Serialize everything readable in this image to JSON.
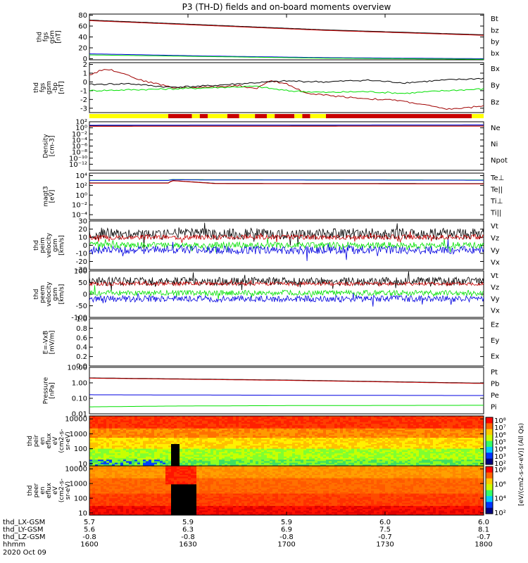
{
  "title": "P3 (TH-D) fields and on-board moments overview",
  "colors": {
    "black": "#000000",
    "red": "#c80000",
    "darkred": "#a00000",
    "green": "#00e000",
    "blue": "#0000e0",
    "yellow": "#ffff00"
  },
  "chart_data": [
    {
      "type": "line",
      "id": "fgs_mag",
      "ylabel": [
        "thd",
        "fgs",
        "gsm",
        "[nT]"
      ],
      "ylim": [
        -2,
        82
      ],
      "yticks": [
        "0",
        "20",
        "40",
        "60",
        "80"
      ],
      "legend": [
        {
          "name": "Bt",
          "color": "#000000"
        },
        {
          "name": "bz",
          "color": "#c80000"
        },
        {
          "name": "by",
          "color": "#00e000"
        },
        {
          "name": "bx",
          "color": "#0000e0"
        }
      ],
      "series": [
        {
          "name": "Bt",
          "color": "#000000",
          "x": [
            0,
            0.3,
            0.6,
            1.0
          ],
          "y": [
            71,
            62,
            53,
            44
          ]
        },
        {
          "name": "bz",
          "color": "#c80000",
          "x": [
            0,
            0.3,
            0.6,
            1.0
          ],
          "y": [
            70,
            61,
            52,
            43
          ]
        },
        {
          "name": "bx",
          "color": "#0000e0",
          "x": [
            0,
            0.3,
            0.6,
            1.0
          ],
          "y": [
            9,
            5,
            2,
            0
          ]
        },
        {
          "name": "by",
          "color": "#00e000",
          "x": [
            0,
            0.3,
            0.6,
            1.0
          ],
          "y": [
            7,
            4,
            1,
            -1
          ]
        }
      ]
    },
    {
      "type": "line",
      "id": "fgs_dsl",
      "ylabel": [
        "thd",
        "fgs",
        "gsm",
        "-bp",
        "[nT]"
      ],
      "ylim": [
        -3.5,
        2.2
      ],
      "yticks": [
        "-3",
        "-2",
        "-1",
        "0",
        "1",
        "2"
      ],
      "legend": [
        {
          "name": "Bx",
          "color": "#000000"
        },
        {
          "name": "By",
          "color": "#00e000"
        },
        {
          "name": "Bz",
          "color": "#c80000"
        }
      ],
      "series": [
        {
          "name": "Bz",
          "color": "#a00000",
          "x": [
            0,
            0.04,
            0.08,
            0.13,
            0.18,
            0.22,
            0.3,
            0.38,
            0.42,
            0.46,
            0.5,
            0.55,
            0.62,
            0.7,
            0.78,
            0.85,
            0.9,
            0.95,
            1.0
          ],
          "y": [
            0.8,
            1.5,
            1.1,
            0.2,
            -0.3,
            -0.7,
            -0.6,
            -0.4,
            -0.8,
            0.1,
            -0.2,
            -1.3,
            -1.6,
            -1.9,
            -2.1,
            -2.6,
            -3.1,
            -3.0,
            -2.7
          ]
        },
        {
          "name": "Bx",
          "color": "#000000",
          "x": [
            0,
            0.1,
            0.2,
            0.28,
            0.35,
            0.42,
            0.5,
            0.6,
            0.7,
            0.8,
            0.9,
            1.0
          ],
          "y": [
            -0.3,
            -0.2,
            -0.6,
            -0.5,
            -0.3,
            -0.1,
            0.1,
            0.0,
            0.2,
            -0.1,
            0.2,
            0.4
          ]
        },
        {
          "name": "By",
          "color": "#00e000",
          "x": [
            0,
            0.1,
            0.2,
            0.28,
            0.35,
            0.42,
            0.5,
            0.6,
            0.7,
            0.8,
            0.9,
            1.0
          ],
          "y": [
            -1.0,
            -0.9,
            -0.8,
            -0.7,
            -0.6,
            -0.5,
            -1.0,
            -1.2,
            -1.1,
            -1.3,
            -1.0,
            -0.8
          ]
        }
      ],
      "mode_bar": [
        {
          "from": 0.0,
          "to": 0.2,
          "color": "#ffff00"
        },
        {
          "from": 0.2,
          "to": 0.26,
          "color": "#c80000"
        },
        {
          "from": 0.26,
          "to": 0.28,
          "color": "#ffff00"
        },
        {
          "from": 0.28,
          "to": 0.3,
          "color": "#c80000"
        },
        {
          "from": 0.3,
          "to": 0.35,
          "color": "#ffff00"
        },
        {
          "from": 0.35,
          "to": 0.38,
          "color": "#c80000"
        },
        {
          "from": 0.38,
          "to": 0.42,
          "color": "#ffff00"
        },
        {
          "from": 0.42,
          "to": 0.45,
          "color": "#c80000"
        },
        {
          "from": 0.45,
          "to": 0.47,
          "color": "#ffff00"
        },
        {
          "from": 0.47,
          "to": 0.52,
          "color": "#c80000"
        },
        {
          "from": 0.52,
          "to": 0.54,
          "color": "#ffff00"
        },
        {
          "from": 0.54,
          "to": 0.56,
          "color": "#c80000"
        },
        {
          "from": 0.56,
          "to": 0.6,
          "color": "#ffff00"
        },
        {
          "from": 0.6,
          "to": 0.97,
          "color": "#c80000"
        },
        {
          "from": 0.97,
          "to": 1.0,
          "color": "#ffff00"
        }
      ]
    },
    {
      "type": "line",
      "id": "density",
      "ylabel": [
        "Density",
        "[cm-3]"
      ],
      "yscale": "log",
      "ylim": [
        -14,
        2
      ],
      "yticks": [
        "10²",
        "10⁰",
        "10⁻²",
        "10⁻⁴",
        "10⁻⁶",
        "10⁻⁸",
        "10⁻¹⁰",
        "10⁻¹²"
      ],
      "legend": [
        {
          "name": "Ne",
          "color": "#c80000"
        },
        {
          "name": "Ni",
          "color": "#000000"
        },
        {
          "name": "Npot",
          "color": "#0000e0"
        }
      ],
      "series": [
        {
          "name": "Npot",
          "color": "#0000e0",
          "x": [
            0,
            0.5,
            1.0
          ],
          "y": [
            0.85,
            0.9,
            0.95
          ]
        },
        {
          "name": "Ni",
          "color": "#000000",
          "x": [
            0,
            0.5,
            1.0
          ],
          "y": [
            0.6,
            0.62,
            0.64
          ]
        },
        {
          "name": "Ne",
          "color": "#c80000",
          "x": [
            0,
            0.5,
            1.0
          ],
          "y": [
            0.5,
            0.52,
            0.55
          ]
        }
      ]
    },
    {
      "type": "line",
      "id": "temperature",
      "ylabel": [
        "magt3",
        "[eV]"
      ],
      "yscale": "log",
      "ylim": [
        -5,
        4.5
      ],
      "yticks": [
        "10⁴",
        "10²",
        "10⁰",
        "10⁻²",
        "10⁻⁴"
      ],
      "legend": [
        {
          "name": "Te⊥",
          "color": "#c80000"
        },
        {
          "name": "Te||",
          "color": "#000000"
        },
        {
          "name": "Ti⊥",
          "color": "#0000e0"
        },
        {
          "name": "Ti||",
          "color": "#00e000"
        }
      ],
      "series": [
        {
          "name": "Ti||",
          "color": "#00e000",
          "x": [
            0,
            0.2,
            0.21,
            0.3,
            1.0
          ],
          "y": [
            3.05,
            3.05,
            3.2,
            3.15,
            3.1
          ]
        },
        {
          "name": "Ti⊥",
          "color": "#0000e0",
          "x": [
            0,
            0.2,
            0.21,
            0.3,
            1.0
          ],
          "y": [
            3.0,
            3.0,
            3.15,
            3.1,
            3.05
          ]
        },
        {
          "name": "Te||",
          "color": "#000000",
          "x": [
            0,
            0.2,
            0.21,
            0.32,
            1.0
          ],
          "y": [
            2.5,
            2.5,
            3.0,
            2.4,
            2.35
          ]
        },
        {
          "name": "Te⊥",
          "color": "#c80000",
          "x": [
            0,
            0.2,
            0.21,
            0.32,
            1.0
          ],
          "y": [
            2.45,
            2.45,
            2.95,
            2.35,
            2.3
          ]
        }
      ]
    },
    {
      "type": "line",
      "id": "peim_velocity",
      "ylabel": [
        "thd",
        "peim",
        "velocity",
        "gsm",
        "[km/s]"
      ],
      "ylim": [
        -30,
        30
      ],
      "yticks": [
        "30",
        "20",
        "10",
        "0",
        "-10",
        "-20",
        "-30"
      ],
      "legend": [
        {
          "name": "Vt",
          "color": "#000000"
        },
        {
          "name": "Vz",
          "color": "#c80000"
        },
        {
          "name": "Vy",
          "color": "#00e000"
        },
        {
          "name": "Vx",
          "color": "#0000e0"
        }
      ],
      "series": [
        {
          "name": "Vt",
          "color": "#000000",
          "mean": 14,
          "spread": 7
        },
        {
          "name": "Vz",
          "color": "#c80000",
          "mean": 10,
          "spread": 3
        },
        {
          "name": "Vy",
          "color": "#00e000",
          "mean": 0,
          "spread": 4
        },
        {
          "name": "Vx",
          "color": "#0000e0",
          "mean": -6,
          "spread": 5
        }
      ],
      "gap": [
        0.2,
        0.21
      ]
    },
    {
      "type": "line",
      "id": "peem_velocity",
      "ylabel": [
        "thd",
        "peem",
        "velocity",
        "gsm",
        "[km/s]"
      ],
      "ylim": [
        -100,
        100
      ],
      "yticks": [
        "100",
        "50",
        "0",
        "-50",
        "-100"
      ],
      "legend": [
        {
          "name": "Vt",
          "color": "#000000"
        },
        {
          "name": "Vz",
          "color": "#c80000"
        },
        {
          "name": "Vy",
          "color": "#00e000"
        },
        {
          "name": "Vx",
          "color": "#0000e0"
        }
      ],
      "series": [
        {
          "name": "Vt",
          "color": "#000000",
          "mean": 55,
          "spread": 18
        },
        {
          "name": "Vz",
          "color": "#c80000",
          "mean": 45,
          "spread": 8
        },
        {
          "name": "Vy",
          "color": "#00e000",
          "mean": 5,
          "spread": 12
        },
        {
          "name": "Vx",
          "color": "#0000e0",
          "mean": -20,
          "spread": 14
        }
      ],
      "gap": [
        0.2,
        0.21
      ]
    },
    {
      "type": "line",
      "id": "efield",
      "ylabel": [
        "E=-VxB",
        "[mV/m]"
      ],
      "ylim": [
        0,
        1
      ],
      "yticks": [
        "1.0",
        "0.8",
        "0.6",
        "0.4",
        "0.2",
        "0.0"
      ],
      "legend": [
        {
          "name": "Ez",
          "color": "#c80000"
        },
        {
          "name": "Ey",
          "color": "#00e000"
        },
        {
          "name": "Ex",
          "color": "#0000e0"
        }
      ],
      "series": []
    },
    {
      "type": "line",
      "id": "pressure",
      "ylabel": [
        "Pressure",
        "[nPa]"
      ],
      "yscale": "log",
      "ylim": [
        -2,
        1
      ],
      "yticks": [
        "10.00",
        "1.00",
        "0.10",
        "0.01"
      ],
      "legend": [
        {
          "name": "Pt",
          "color": "#000000"
        },
        {
          "name": "Pb",
          "color": "#c80000"
        },
        {
          "name": "Pe",
          "color": "#0000e0"
        },
        {
          "name": "Pi",
          "color": "#00e000"
        }
      ],
      "series": [
        {
          "name": "Pt",
          "color": "#000000",
          "x": [
            0,
            0.5,
            1.0
          ],
          "y": [
            0.32,
            0.18,
            -0.02
          ]
        },
        {
          "name": "Pb",
          "color": "#c80000",
          "x": [
            0,
            0.5,
            1.0
          ],
          "y": [
            0.3,
            0.16,
            -0.04
          ]
        },
        {
          "name": "Pe",
          "color": "#0000e0",
          "x": [
            0,
            0.5,
            1.0
          ],
          "y": [
            -0.77,
            -0.8,
            -0.82
          ]
        },
        {
          "name": "Pi",
          "color": "#00e000",
          "x": [
            0,
            0.2,
            0.5,
            1.0
          ],
          "y": [
            -1.55,
            -1.5,
            -1.47,
            -1.45
          ]
        }
      ]
    },
    {
      "type": "heatmap",
      "id": "peir_eflux",
      "ylabel": [
        "thd",
        "peir",
        "en",
        "eflux",
        "eV",
        "(cm2-s-",
        "sr-eV)"
      ],
      "yscale": "log",
      "ylim": [
        0.85,
        4.2
      ],
      "yticks": [
        "10000",
        "1000",
        "100",
        "10"
      ]
    },
    {
      "type": "heatmap",
      "id": "peer_eflux",
      "ylabel": [
        "thd",
        "peer",
        "en",
        "eflux",
        "eV",
        "(cm2-s-",
        "sr-eV)"
      ],
      "yscale": "log",
      "ylim": [
        0.85,
        4.2
      ],
      "yticks": [
        "10000",
        "1000",
        "100",
        "10"
      ]
    }
  ],
  "colorbars": [
    {
      "ticks": [
        "10⁸",
        "10⁷",
        "10⁶",
        "10⁵",
        "10⁴",
        "10³",
        "10²"
      ]
    },
    {
      "ticks": [
        "10⁸",
        "10⁶",
        "10⁴",
        "10²"
      ]
    }
  ],
  "colorbar_label": "[eV/(cm2-s-sr-eV)] (All Qs)",
  "x_axis": {
    "rows": [
      {
        "label": "thd_LX-GSM",
        "values": [
          "5.7",
          "5.9",
          "5.9",
          "6.0",
          "6.0"
        ]
      },
      {
        "label": "thd_LY-GSM",
        "values": [
          "5.6",
          "6.3",
          "6.9",
          "7.5",
          "8.1"
        ]
      },
      {
        "label": "thd_LZ-GSM",
        "values": [
          "-0.8",
          "-0.8",
          "-0.8",
          "-0.7",
          "-0.7"
        ]
      },
      {
        "label": "hhmm",
        "values": [
          "1600",
          "1630",
          "1700",
          "1730",
          "1800"
        ]
      }
    ],
    "date": "2020 Oct 09"
  }
}
